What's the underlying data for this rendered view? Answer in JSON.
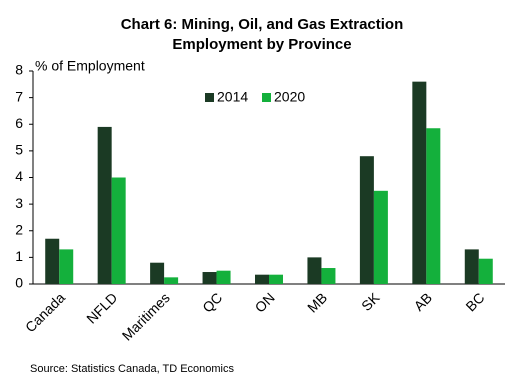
{
  "chart_data": {
    "type": "bar",
    "title": [
      "Chart 6: Mining, Oil, and Gas Extraction",
      "Employment by Province"
    ],
    "y_label": "% of Employment",
    "categories": [
      "Canada",
      "NFLD",
      "Maritimes",
      "QC",
      "ON",
      "MB",
      "SK",
      "AB",
      "BC"
    ],
    "series": [
      {
        "name": "2014",
        "color": "#1b3a24",
        "values": [
          1.7,
          5.9,
          0.8,
          0.45,
          0.35,
          1.0,
          4.8,
          7.6,
          1.3
        ]
      },
      {
        "name": "2020",
        "color": "#14b03c",
        "values": [
          1.3,
          4.0,
          0.25,
          0.5,
          0.35,
          0.6,
          3.5,
          5.85,
          0.95
        ]
      }
    ],
    "ylim": [
      0,
      8
    ],
    "yticks": [
      0,
      1,
      2,
      3,
      4,
      5,
      6,
      7,
      8
    ],
    "grid": false,
    "legend": "top",
    "source": "Source:  Statistics Canada,  TD Economics"
  }
}
